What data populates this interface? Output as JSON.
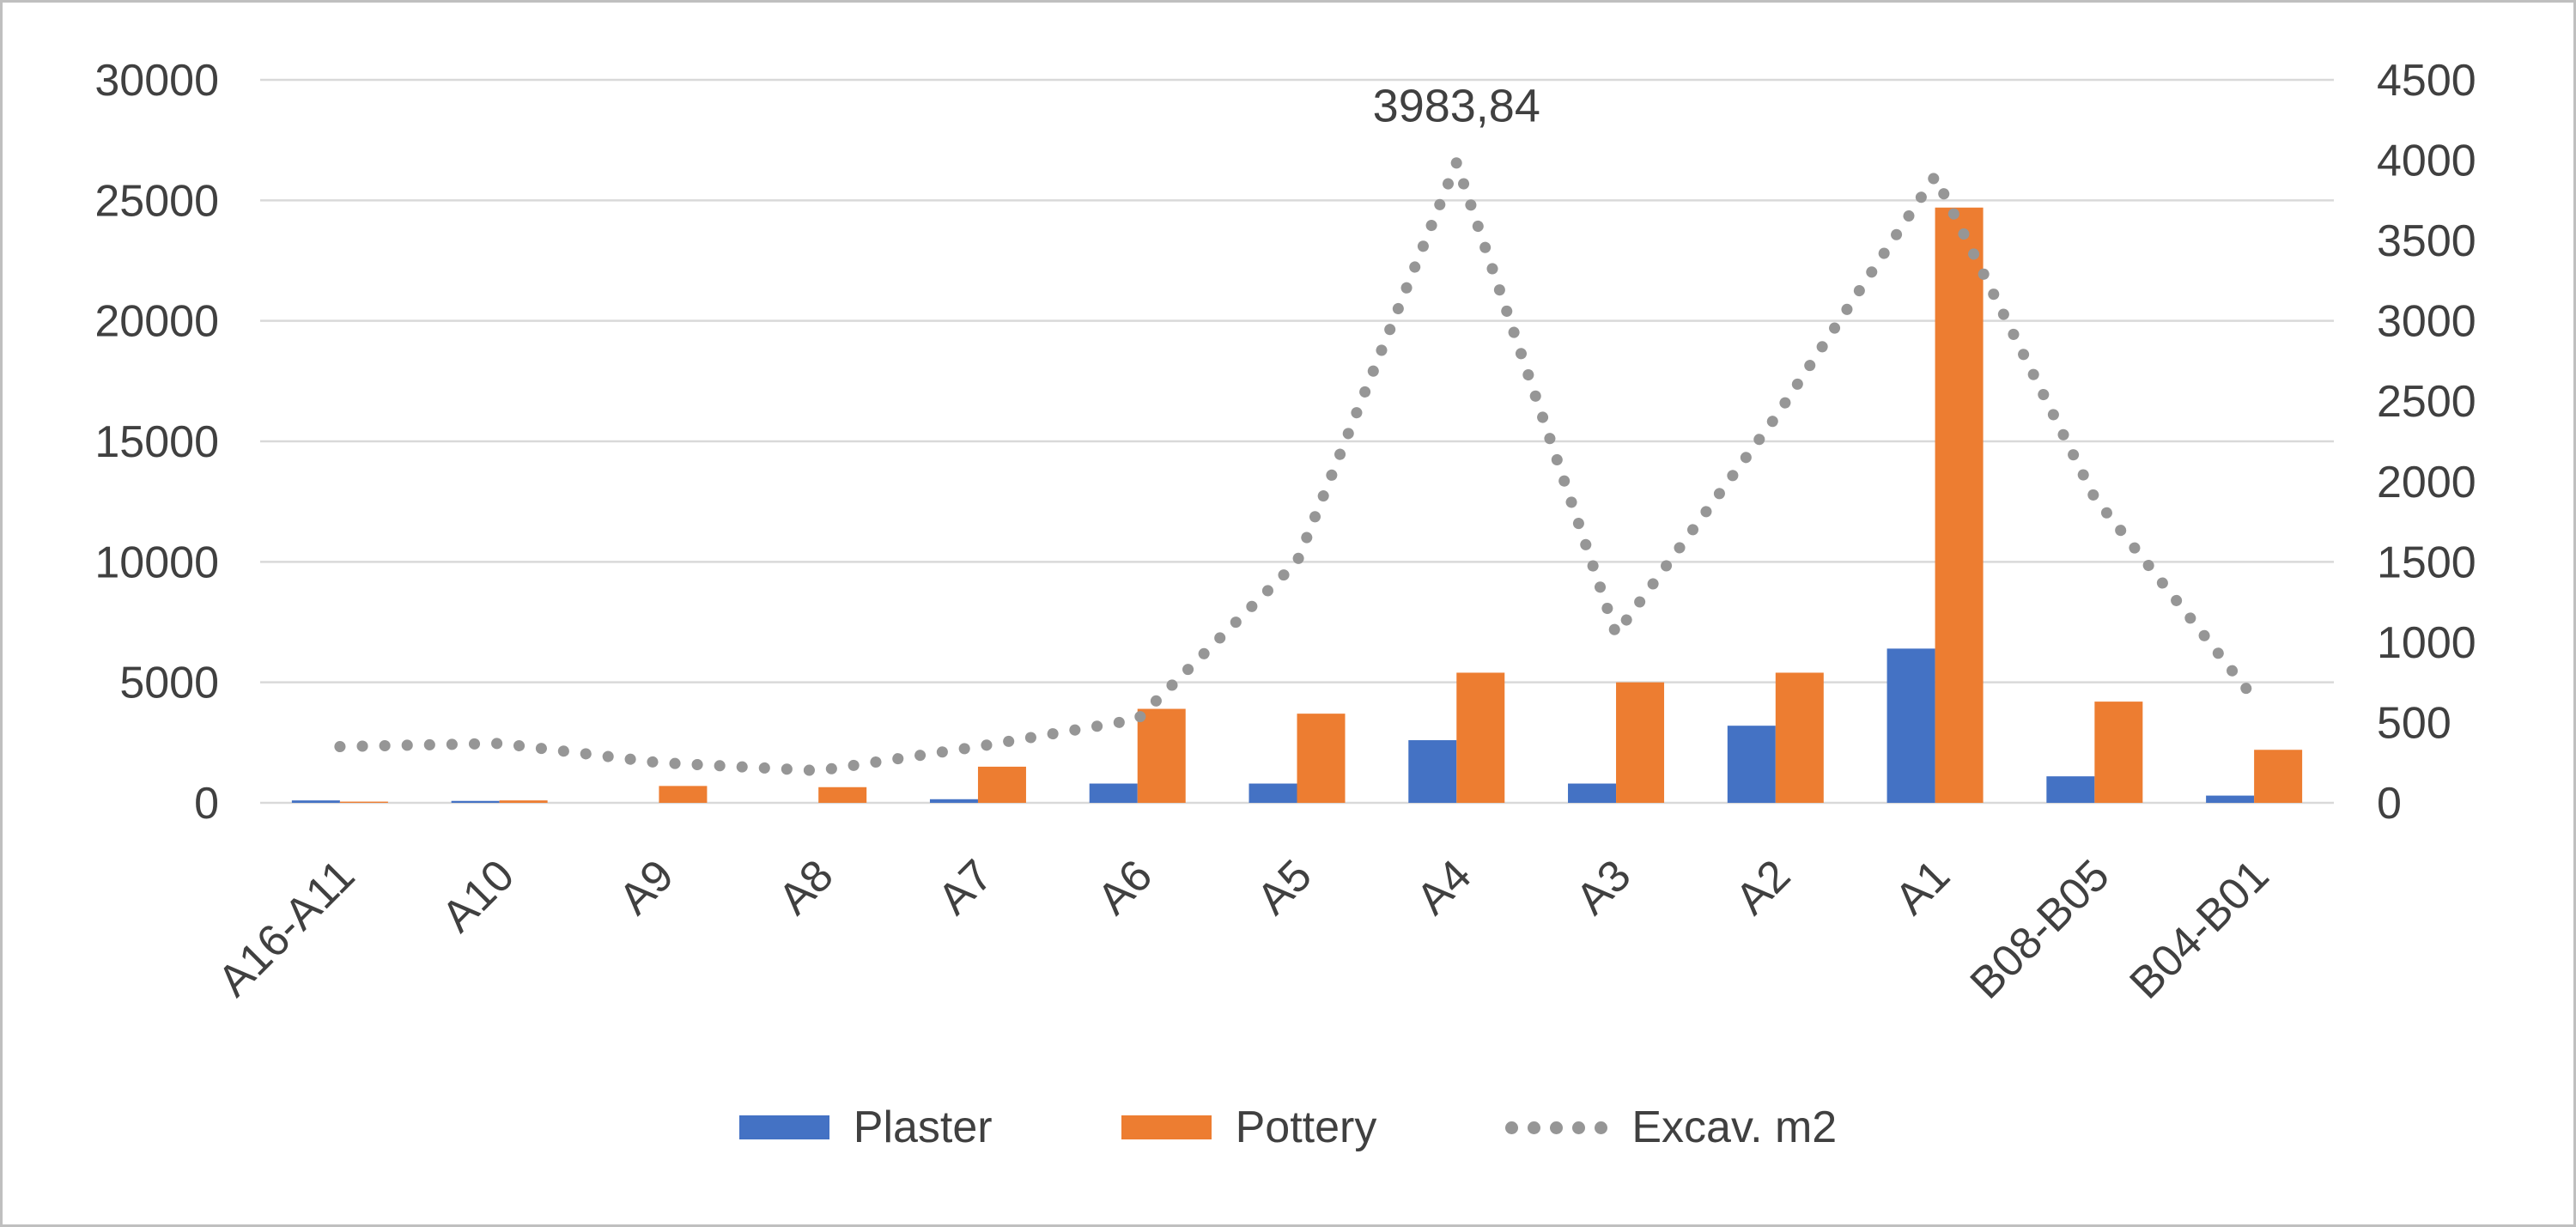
{
  "chart_data": {
    "type": "bar",
    "subtype": "combo-clustered-bar-with-dotted-line",
    "title": "",
    "categories": [
      "A16-A11",
      "A10",
      "A9",
      "A8",
      "A7",
      "A6",
      "A5",
      "A4",
      "A3",
      "A2",
      "A1",
      "B08-B05",
      "B04-B01"
    ],
    "series": [
      {
        "name": "Plaster",
        "type": "bar",
        "axis": "left",
        "color": "#4472C4",
        "values": [
          100,
          80,
          0,
          0,
          150,
          800,
          800,
          2600,
          800,
          3200,
          6400,
          1100,
          300
        ]
      },
      {
        "name": "Pottery",
        "type": "bar",
        "axis": "left",
        "color": "#ED7D31",
        "values": [
          50,
          100,
          700,
          650,
          1500,
          3900,
          3700,
          5400,
          5000,
          5400,
          24700,
          4200,
          2200
        ]
      },
      {
        "name": "Excav. m2",
        "type": "dotted-line",
        "axis": "right",
        "color": "#969696",
        "values": [
          350,
          370,
          250,
          200,
          350,
          520,
          1500,
          3983.84,
          1050,
          2400,
          3900,
          1900,
          650
        ]
      }
    ],
    "left_axis": {
      "min": 0,
      "max": 30000,
      "step": 5000,
      "ticks": [
        "30000",
        "25000",
        "20000",
        "15000",
        "10000",
        "5000",
        "0"
      ],
      "tick_values": [
        30000,
        25000,
        20000,
        15000,
        10000,
        5000,
        0
      ]
    },
    "right_axis": {
      "min": 0,
      "max": 4500,
      "step": 500,
      "ticks": [
        "4500",
        "4000",
        "3500",
        "3000",
        "2500",
        "2000",
        "1500",
        "1000",
        "500",
        "0"
      ],
      "tick_values": [
        4500,
        4000,
        3500,
        3000,
        2500,
        2000,
        1500,
        1000,
        500,
        0
      ]
    },
    "annotation": {
      "text": "3983,84",
      "category": "A4",
      "value": 3983.84
    },
    "legend": {
      "position": "bottom",
      "items": [
        "Plaster",
        "Pottery",
        "Excav. m2"
      ]
    },
    "grid": "horizontal",
    "colors": {
      "grid": "#D9D9D9",
      "text": "#404040",
      "border": "#BFBFBF"
    }
  }
}
